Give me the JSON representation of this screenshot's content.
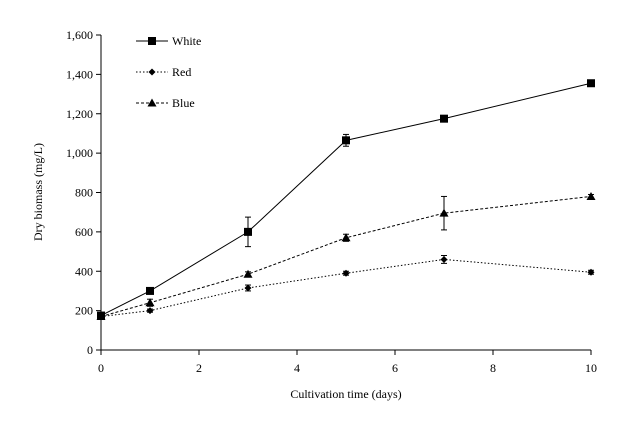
{
  "chart_data": {
    "type": "line",
    "title": "",
    "xlabel": "Cultivation time (days)",
    "ylabel": "Dry biomass (mg/L)",
    "xlim": [
      0,
      10
    ],
    "ylim": [
      0,
      1600
    ],
    "x_ticks": [
      0,
      2,
      4,
      6,
      8,
      10
    ],
    "x_tick_labels": [
      "0",
      "2",
      "4",
      "6",
      "8",
      "10"
    ],
    "y_ticks": [
      0,
      200,
      400,
      600,
      800,
      1000,
      1200,
      1400,
      1600
    ],
    "y_tick_labels": [
      "0",
      "200",
      "400",
      "600",
      "800",
      "1,000",
      "1,200",
      "1,400",
      "1,600"
    ],
    "grid": false,
    "legend_position": "top-left",
    "series": [
      {
        "name": "White",
        "marker": "square",
        "line_style": "solid",
        "color": "#000000",
        "x": [
          0,
          1,
          3,
          5,
          7,
          10
        ],
        "y": [
          175,
          300,
          600,
          1065,
          1175,
          1355
        ],
        "err": [
          0,
          10,
          75,
          30,
          10,
          10
        ]
      },
      {
        "name": "Red",
        "marker": "diamond",
        "line_style": "dotted",
        "color": "#000000",
        "x": [
          0,
          1,
          3,
          5,
          7,
          10
        ],
        "y": [
          170,
          200,
          315,
          390,
          460,
          395
        ],
        "err": [
          0,
          8,
          15,
          10,
          20,
          10
        ]
      },
      {
        "name": "Blue",
        "marker": "triangle",
        "line_style": "dashed",
        "color": "#000000",
        "x": [
          0,
          1,
          3,
          5,
          7,
          10
        ],
        "y": [
          170,
          240,
          385,
          570,
          695,
          780
        ],
        "err": [
          0,
          18,
          12,
          18,
          85,
          10
        ]
      }
    ]
  }
}
